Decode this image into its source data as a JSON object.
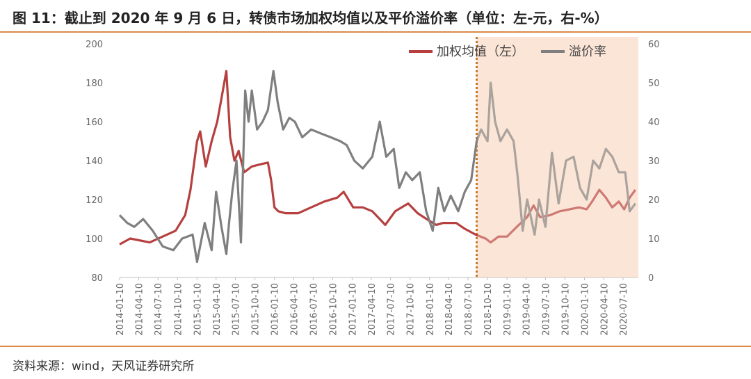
{
  "header": {
    "title": "图 11：截止到 2020 年 9 月 6 日，转债市场加权均值以及平价溢价率（单位：左-元，右-%）"
  },
  "footer": {
    "source": "资料来源：wind，天风证券研究所"
  },
  "colors": {
    "accent": "#d98a4b",
    "shade": "#fbe5d6",
    "series_red": "#b5403f",
    "series_gray": "#7f7f7f"
  },
  "chart_data": {
    "type": "line",
    "x_ticks": [
      "2014-01-10",
      "2014-04-10",
      "2014-07-10",
      "2014-10-10",
      "2015-01-10",
      "2015-04-10",
      "2015-07-10",
      "2015-10-10",
      "2016-01-10",
      "2016-04-10",
      "2016-07-10",
      "2016-10-10",
      "2017-01-10",
      "2017-04-10",
      "2017-07-10",
      "2017-10-10",
      "2018-01-10",
      "2018-04-10",
      "2018-07-10",
      "2018-10-10",
      "2019-01-10",
      "2019-04-10",
      "2019-07-10",
      "2019-10-10",
      "2020-01-10",
      "2020-04-10",
      "2020-07-10"
    ],
    "y_left": {
      "ylim": [
        80,
        200
      ],
      "ticks": [
        "80",
        "100",
        "120",
        "140",
        "160",
        "180",
        "200"
      ]
    },
    "y_right": {
      "ylim": [
        0,
        60
      ],
      "ticks": [
        "0",
        "10",
        "20",
        "30",
        "40",
        "50",
        "60"
      ]
    },
    "highlight_start": "2018-08-20",
    "series": [
      {
        "name": "加权均值（左）",
        "axis": "left",
        "x": [
          "2014-01-10",
          "2014-03-01",
          "2014-06-01",
          "2014-08-01",
          "2014-10-01",
          "2014-11-15",
          "2014-12-10",
          "2015-01-10",
          "2015-01-25",
          "2015-02-20",
          "2015-03-20",
          "2015-04-15",
          "2015-05-05",
          "2015-05-28",
          "2015-06-15",
          "2015-07-05",
          "2015-07-25",
          "2015-08-20",
          "2015-09-25",
          "2015-11-01",
          "2015-12-10",
          "2015-12-25",
          "2016-01-10",
          "2016-01-28",
          "2016-03-01",
          "2016-05-01",
          "2016-07-01",
          "2016-09-01",
          "2016-11-01",
          "2016-12-01",
          "2017-01-15",
          "2017-03-01",
          "2017-04-15",
          "2017-05-20",
          "2017-06-15",
          "2017-08-01",
          "2017-10-01",
          "2017-11-15",
          "2018-01-10",
          "2018-02-10",
          "2018-03-15",
          "2018-05-15",
          "2018-06-25",
          "2018-08-15",
          "2018-10-01",
          "2018-10-25",
          "2018-12-01",
          "2019-01-10",
          "2019-02-25",
          "2019-04-15",
          "2019-05-15",
          "2019-06-15",
          "2019-08-01",
          "2019-09-15",
          "2019-11-01",
          "2019-12-15",
          "2020-01-20",
          "2020-02-15",
          "2020-03-20",
          "2020-04-20",
          "2020-05-20",
          "2020-06-20",
          "2020-07-15",
          "2020-08-10",
          "2020-09-06"
        ],
        "values": [
          97,
          100,
          98,
          101,
          104,
          112,
          125,
          150,
          155,
          137,
          150,
          160,
          172,
          186,
          152,
          140,
          145,
          134,
          137,
          138,
          139,
          130,
          116,
          114,
          113,
          113,
          116,
          119,
          121,
          124,
          116,
          116,
          114,
          110,
          107,
          114,
          118,
          113,
          109,
          107,
          108,
          108,
          105,
          102,
          100,
          98,
          101,
          101,
          106,
          111,
          117,
          111,
          112,
          114,
          115,
          116,
          115,
          119,
          125,
          121,
          116,
          119,
          115,
          121,
          125
        ]
      },
      {
        "name": "溢价率",
        "axis": "right",
        "x": [
          "2014-01-10",
          "2014-02-15",
          "2014-03-20",
          "2014-05-01",
          "2014-06-15",
          "2014-08-01",
          "2014-09-20",
          "2014-11-01",
          "2014-12-20",
          "2015-01-10",
          "2015-02-15",
          "2015-03-20",
          "2015-04-10",
          "2015-05-05",
          "2015-05-28",
          "2015-06-10",
          "2015-06-25",
          "2015-07-15",
          "2015-08-05",
          "2015-08-25",
          "2015-09-10",
          "2015-09-25",
          "2015-10-20",
          "2015-11-15",
          "2015-12-10",
          "2016-01-05",
          "2016-01-25",
          "2016-02-20",
          "2016-03-20",
          "2016-04-15",
          "2016-05-20",
          "2016-07-01",
          "2016-08-15",
          "2016-10-01",
          "2016-11-15",
          "2016-12-15",
          "2017-01-20",
          "2017-03-01",
          "2017-04-15",
          "2017-05-20",
          "2017-06-20",
          "2017-07-25",
          "2017-08-20",
          "2017-09-20",
          "2017-10-20",
          "2017-11-25",
          "2017-12-25",
          "2018-01-25",
          "2018-02-20",
          "2018-03-20",
          "2018-04-20",
          "2018-05-25",
          "2018-06-25",
          "2018-07-25",
          "2018-08-20",
          "2018-09-10",
          "2018-10-10",
          "2018-10-25",
          "2018-11-15",
          "2018-12-10",
          "2019-01-10",
          "2019-02-10",
          "2019-03-01",
          "2019-03-25",
          "2019-04-15",
          "2019-05-20",
          "2019-06-10",
          "2019-07-10",
          "2019-08-10",
          "2019-09-10",
          "2019-10-15",
          "2019-11-20",
          "2019-12-20",
          "2020-01-20",
          "2020-02-20",
          "2020-03-20",
          "2020-04-20",
          "2020-05-20",
          "2020-06-20",
          "2020-07-20",
          "2020-08-10",
          "2020-09-06"
        ],
        "values": [
          16,
          14,
          13,
          15,
          12,
          8,
          7,
          10,
          11,
          4,
          14,
          7,
          22,
          13,
          6,
          14,
          22,
          30,
          9,
          48,
          40,
          48,
          38,
          40,
          43,
          53,
          45,
          38,
          41,
          40,
          36,
          38,
          37,
          36,
          35,
          34,
          30,
          28,
          31,
          40,
          31,
          33,
          23,
          27,
          25,
          27,
          17,
          12,
          23,
          17,
          21,
          17,
          22,
          25,
          35,
          38,
          35,
          50,
          40,
          35,
          38,
          35,
          26,
          12,
          20,
          11,
          20,
          13,
          32,
          19,
          30,
          31,
          23,
          20,
          30,
          28,
          33,
          31,
          27,
          27,
          17,
          19
        ]
      }
    ]
  }
}
